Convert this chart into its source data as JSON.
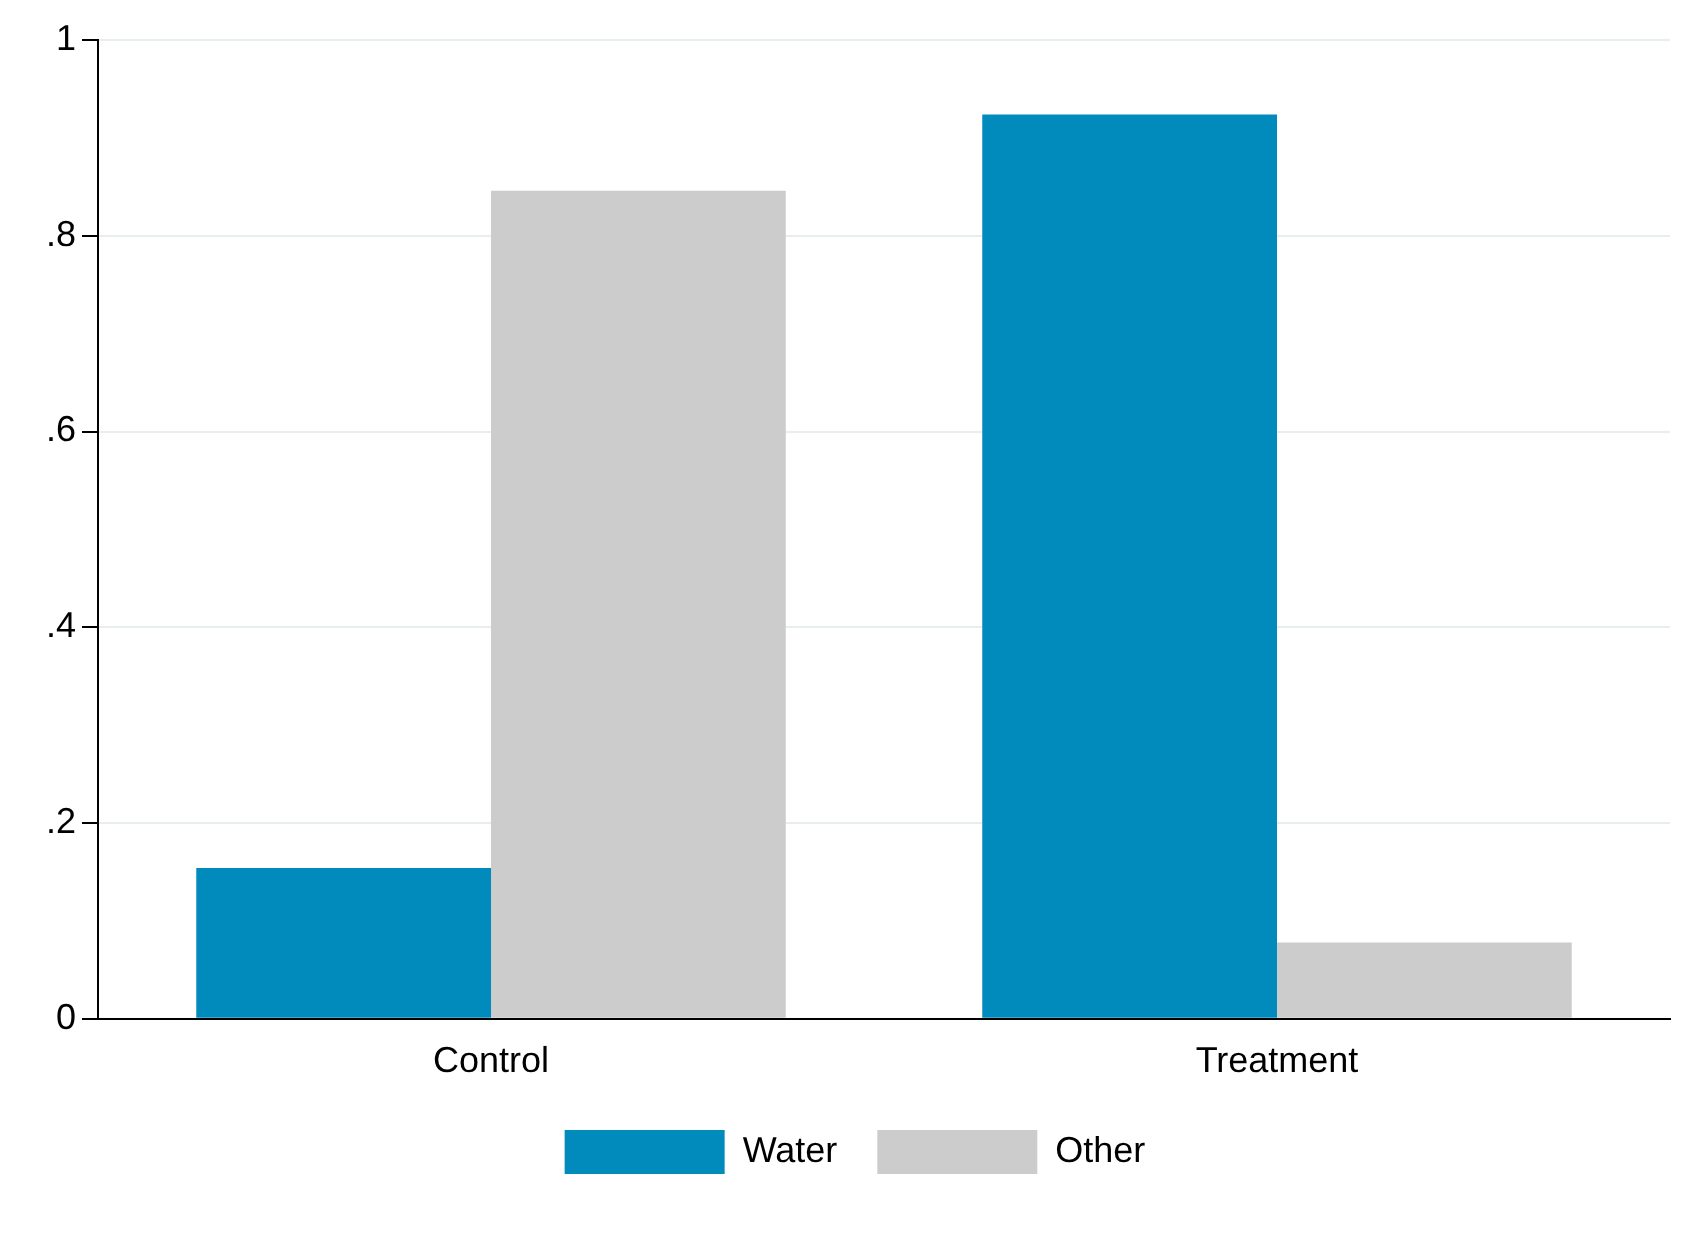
{
  "chart_data": {
    "type": "bar",
    "categories": [
      "Control",
      "Treatment"
    ],
    "series": [
      {
        "name": "Water",
        "color": "#008bbc",
        "values": [
          0.154,
          0.924
        ]
      },
      {
        "name": "Other",
        "color": "#cccccc",
        "values": [
          0.846,
          0.078
        ]
      }
    ],
    "ylim": [
      0,
      1
    ],
    "yticks": [
      {
        "value": 0,
        "label": "0"
      },
      {
        "value": 0.2,
        "label": ".2"
      },
      {
        "value": 0.4,
        "label": ".4"
      },
      {
        "value": 0.6,
        "label": ".6"
      },
      {
        "value": 0.8,
        "label": ".8"
      },
      {
        "value": 1,
        "label": "1"
      }
    ],
    "grid": "y",
    "legend": "bottom"
  }
}
